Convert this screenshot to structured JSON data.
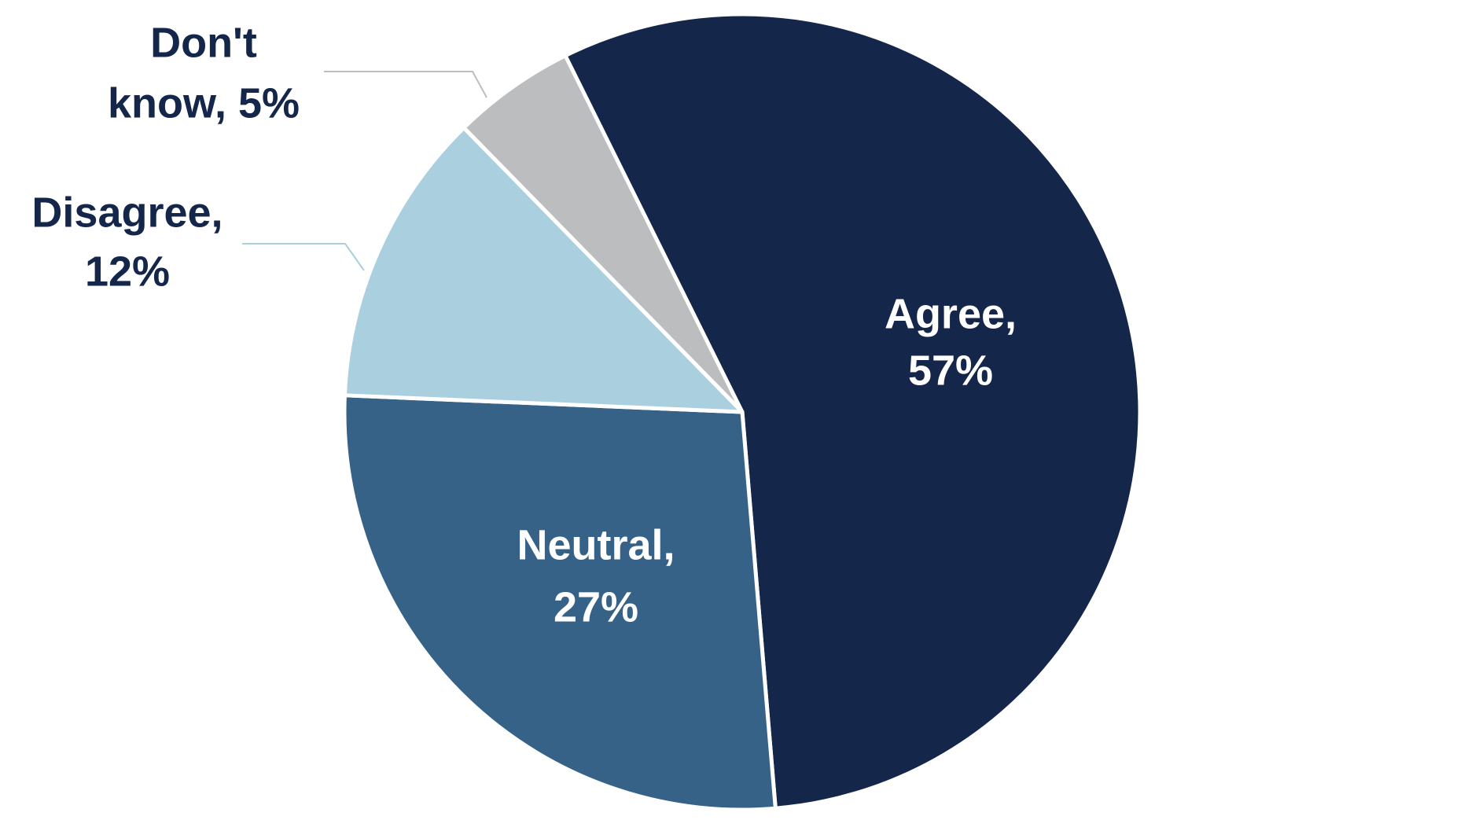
{
  "chart_data": {
    "type": "pie",
    "values": [
      57,
      27,
      12,
      5
    ],
    "value_labels": [
      [
        "Agree,",
        "57%"
      ],
      [
        "Neutral,",
        "27%"
      ],
      [
        "Disagree,",
        "12%"
      ],
      [
        "Don't",
        "know, 5%"
      ]
    ],
    "colors": [
      "#14264a",
      "#366288",
      "#aacfde",
      "#bcbdbf"
    ],
    "label_colors": [
      "#ffffff",
      "#ffffff",
      "#14264a",
      "#14264a"
    ],
    "start_angle": -30
  }
}
